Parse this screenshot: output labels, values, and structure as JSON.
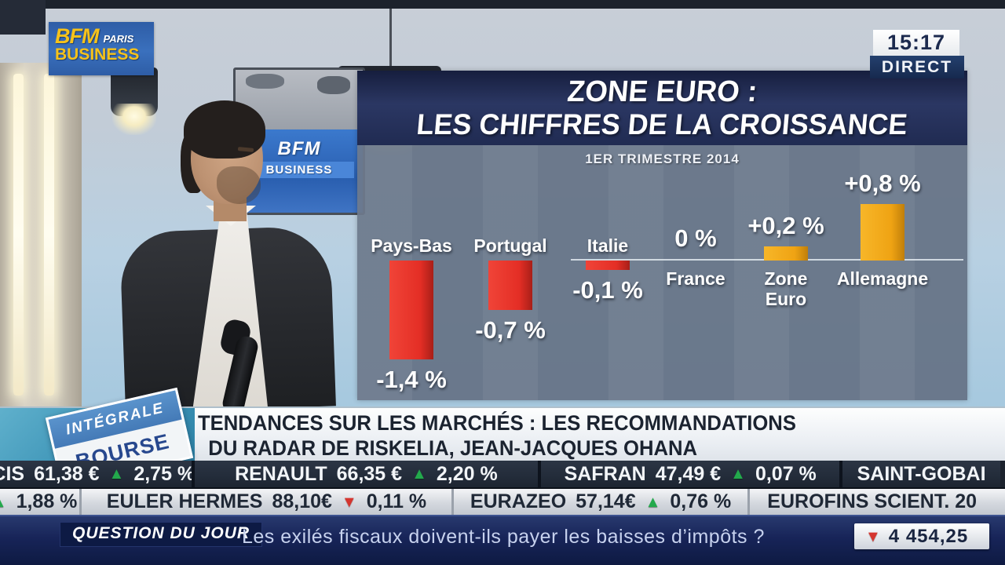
{
  "header": {
    "logo": {
      "bfm": "BFM",
      "paris": "PARIS",
      "business": "BUSINESS"
    },
    "clock": "15:17",
    "live": "DIRECT"
  },
  "studio": {
    "screen_logo_line1": "BFM",
    "screen_logo_line2": "BUSINESS"
  },
  "chart_data": {
    "type": "bar",
    "title_line1": "ZONE EURO :",
    "title_line2": "LES CHIFFRES DE LA CROISSANCE",
    "subtitle": "1ER TRIMESTRE 2014",
    "categories": [
      "Pays-Bas",
      "Portugal",
      "Italie",
      "France",
      "Zone Euro",
      "Allemagne"
    ],
    "values": [
      -1.4,
      -0.7,
      -0.1,
      0,
      0.2,
      0.8
    ],
    "value_labels": [
      "-1,4 %",
      "-0,7 %",
      "-0,1 %",
      "0 %",
      "+0,2 %",
      "+0,8 %"
    ],
    "unit": "%",
    "ylim": [
      -1.6,
      1.0
    ],
    "grid": false,
    "negative_color": "#e42e25",
    "positive_color": "#efa313"
  },
  "stamp": {
    "line1": "INTÉGRALE",
    "line2": "BOURSE"
  },
  "banner": {
    "line1": "TENDANCES SUR LES MARCHÉS : LES RECOMMANDATIONS",
    "line2": "DU RADAR DE RISKELIA, JEAN-JACQUES OHANA"
  },
  "ticker": {
    "row1": [
      {
        "name": "CIS",
        "price": "61,38 €",
        "dir": "up",
        "change": "2,75 %"
      },
      {
        "name": "RENAULT",
        "price": "66,35 €",
        "dir": "up",
        "change": "2,20 %"
      },
      {
        "name": "SAFRAN",
        "price": "47,49 €",
        "dir": "up",
        "change": "0,07 %"
      },
      {
        "name": "SAINT-GOBAI",
        "price": "",
        "dir": "",
        "change": ""
      }
    ],
    "row2": [
      {
        "name": "",
        "price": "",
        "dir": "up",
        "change": "1,88 %"
      },
      {
        "name": "EULER HERMES",
        "price": "88,10€",
        "dir": "down",
        "change": "0,11 %"
      },
      {
        "name": "EURAZEO",
        "price": "57,14€",
        "dir": "up",
        "change": "0,76 %"
      },
      {
        "name": "EUROFINS SCIENT. 20",
        "price": "",
        "dir": "",
        "change": ""
      }
    ]
  },
  "bottom": {
    "label": "QUESTION DU JOUR",
    "question": "Les exilés fiscaux doivent-ils payer les baisses d’impôts ?",
    "index_dir": "down",
    "index_value": "4 454,25"
  },
  "status_colors": {
    "up_green": "#23a94c",
    "down_red": "#d5352f"
  }
}
